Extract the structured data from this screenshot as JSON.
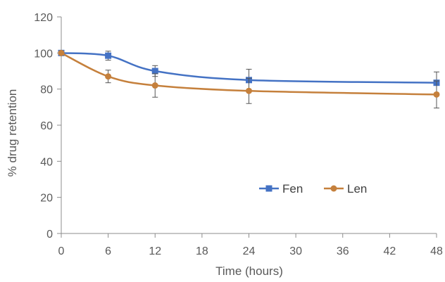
{
  "chart_data": {
    "type": "line",
    "title": "",
    "xlabel": "Time (hours)",
    "ylabel": "% drug retention",
    "xlim": [
      0,
      48
    ],
    "ylim": [
      0,
      120
    ],
    "x_ticks": [
      0,
      6,
      12,
      18,
      24,
      30,
      36,
      42,
      48
    ],
    "y_ticks": [
      0,
      20,
      40,
      60,
      80,
      100,
      120
    ],
    "grid": false,
    "legend_position": "lower-right",
    "x": [
      0,
      6,
      12,
      24,
      48
    ],
    "series": [
      {
        "name": "Fen",
        "color": "#4472C4",
        "marker": "square",
        "values": [
          100,
          98.5,
          90,
          85,
          83.5
        ],
        "error": [
          0,
          2.5,
          3,
          6,
          6
        ]
      },
      {
        "name": "Len",
        "color": "#C5803C",
        "marker": "circle",
        "values": [
          100,
          87,
          82,
          79,
          77
        ],
        "error": [
          0,
          3.5,
          6.5,
          7,
          7.5
        ]
      }
    ]
  }
}
